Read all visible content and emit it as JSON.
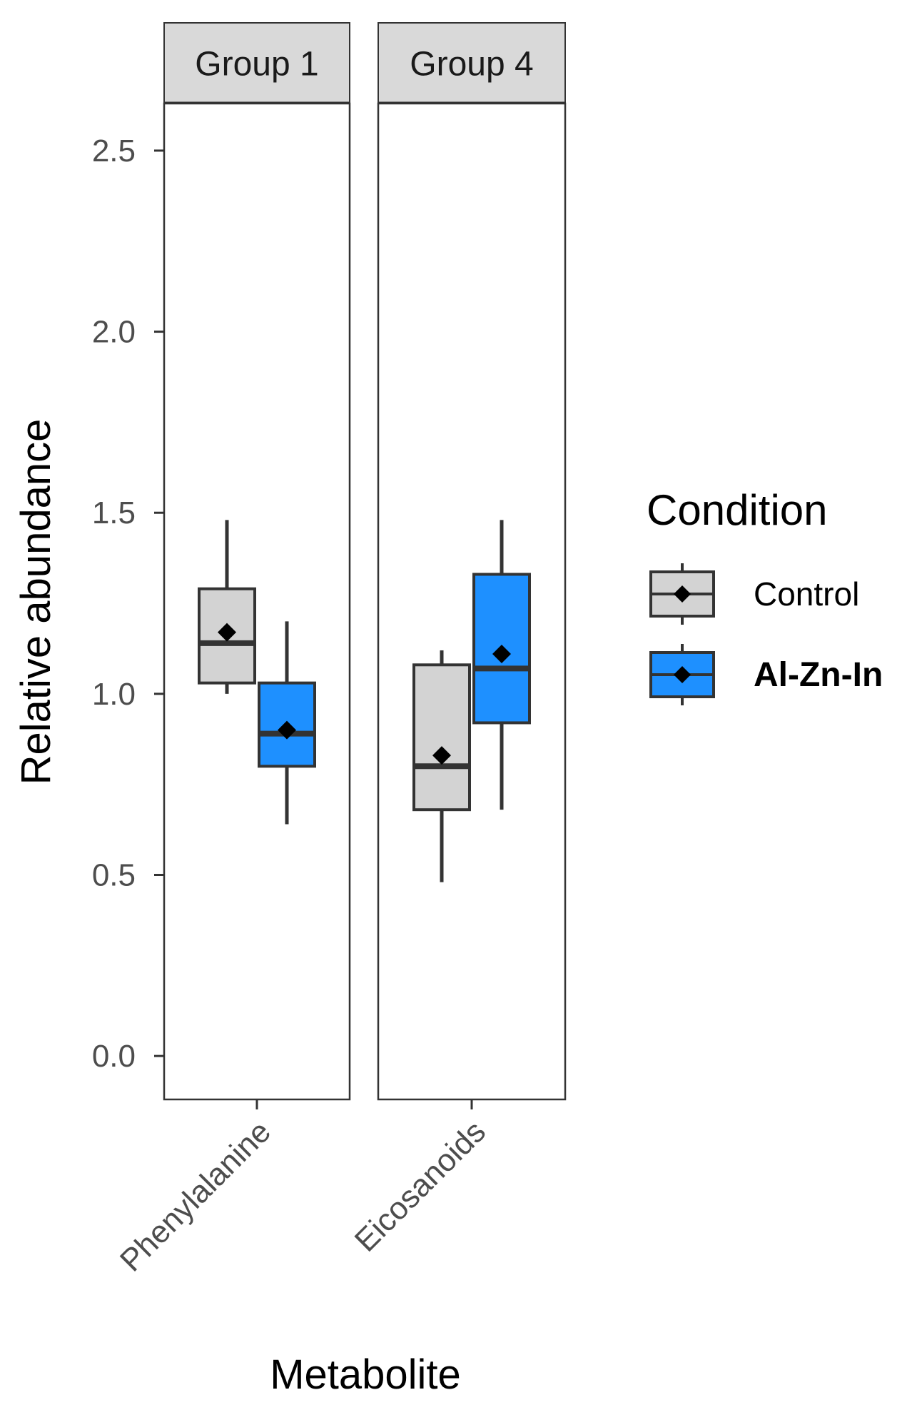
{
  "chart_data": {
    "type": "boxplot",
    "title": "",
    "xlabel": "Metabolite",
    "ylabel": "Relative abundance",
    "ylim": [
      -0.12,
      2.63
    ],
    "yticks": [
      0.0,
      0.5,
      1.0,
      1.5,
      2.0,
      2.5
    ],
    "ytick_labels": [
      "0.0",
      "0.5",
      "1.0",
      "1.5",
      "2.0",
      "2.5"
    ],
    "grid": false,
    "legend": {
      "title": "Condition",
      "placement": "right",
      "entries": [
        {
          "name": "Control",
          "color": "#d3d3d3",
          "bold": false
        },
        {
          "name": "Al-Zn-In",
          "color": "#1e90ff",
          "bold": true
        }
      ]
    },
    "facets": [
      {
        "strip_label": "Group 1",
        "category": "Phenylalanine",
        "boxes": [
          {
            "condition": "Control",
            "whisker_low": 1.0,
            "q1": 1.03,
            "median": 1.14,
            "q3": 1.29,
            "whisker_high": 1.48,
            "mean": 1.17
          },
          {
            "condition": "Al-Zn-In",
            "whisker_low": 0.64,
            "q1": 0.8,
            "median": 0.89,
            "q3": 1.03,
            "whisker_high": 1.2,
            "mean": 0.9
          }
        ]
      },
      {
        "strip_label": "Group 4",
        "category": "Eicosanoids",
        "boxes": [
          {
            "condition": "Control",
            "whisker_low": 0.48,
            "q1": 0.68,
            "median": 0.8,
            "q3": 1.08,
            "whisker_high": 1.12,
            "mean": 0.83
          },
          {
            "condition": "Al-Zn-In",
            "whisker_low": 0.68,
            "q1": 0.92,
            "median": 1.07,
            "q3": 1.33,
            "whisker_high": 1.48,
            "mean": 1.11
          }
        ]
      }
    ]
  },
  "colors": {
    "control_fill": "#d3d3d3",
    "treatment_fill": "#1e90ff",
    "box_outline": "#333333",
    "strip_fill": "#d9d9d9",
    "panel_border": "#333333",
    "mean_marker": "#000000"
  }
}
